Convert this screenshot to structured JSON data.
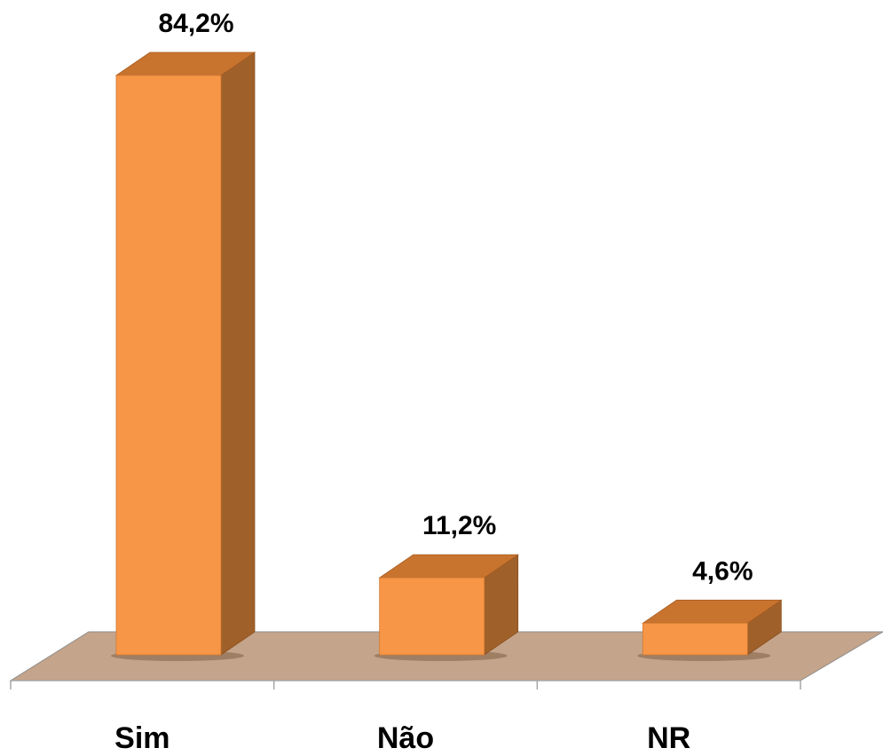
{
  "chart_data": {
    "type": "bar",
    "style": "3d-column",
    "categories": [
      "Sim",
      "Não",
      "NR"
    ],
    "values": [
      84.2,
      11.2,
      4.6
    ],
    "data_labels": [
      "84,2%",
      "11,2%",
      "4,6%"
    ],
    "unit": "%",
    "title": "",
    "xlabel": "",
    "ylabel": "",
    "ylim": [
      0,
      100
    ],
    "grid": false,
    "legend": "none"
  },
  "colors": {
    "bar_front": "#f79646",
    "bar_top": "#c8742f",
    "bar_side": "#a0602a",
    "floor": "#c4a48a",
    "floor_edge": "#8f8f8f",
    "axis": "#a6a6a6",
    "text": "#000000"
  }
}
